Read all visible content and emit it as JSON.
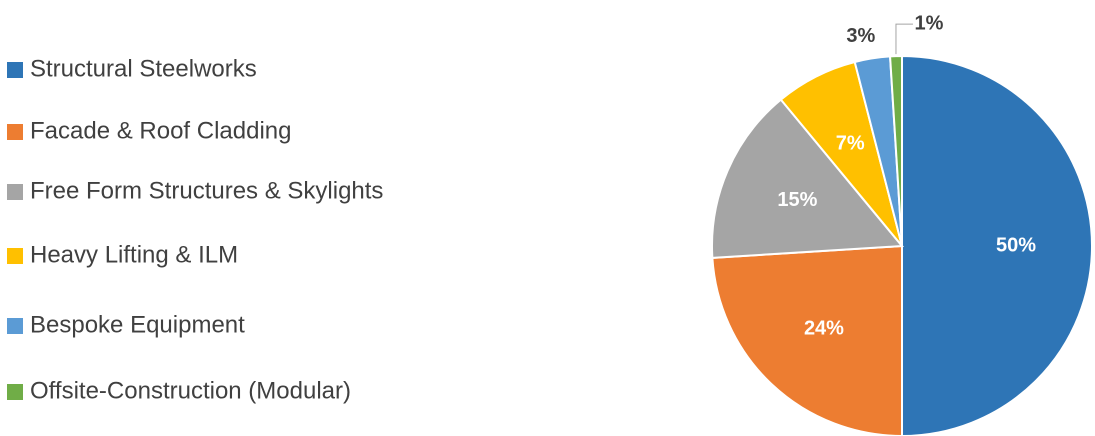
{
  "chart_data": {
    "type": "pie",
    "categories": [
      "Structural Steelworks",
      "Facade & Roof Cladding",
      "Free Form Structures & Skylights",
      "Heavy Lifting & ILM",
      "Bespoke Equipment",
      "Offsite-Construction (Modular)"
    ],
    "values": [
      50,
      24,
      15,
      7,
      3,
      1
    ],
    "value_labels": [
      "50%",
      "24%",
      "15%",
      "7%",
      "3%",
      "1%"
    ],
    "colors": [
      "#2e75b6",
      "#ed7d31",
      "#a5a5a5",
      "#ffc000",
      "#5b9bd5",
      "#70ad47"
    ],
    "legend": "left"
  }
}
